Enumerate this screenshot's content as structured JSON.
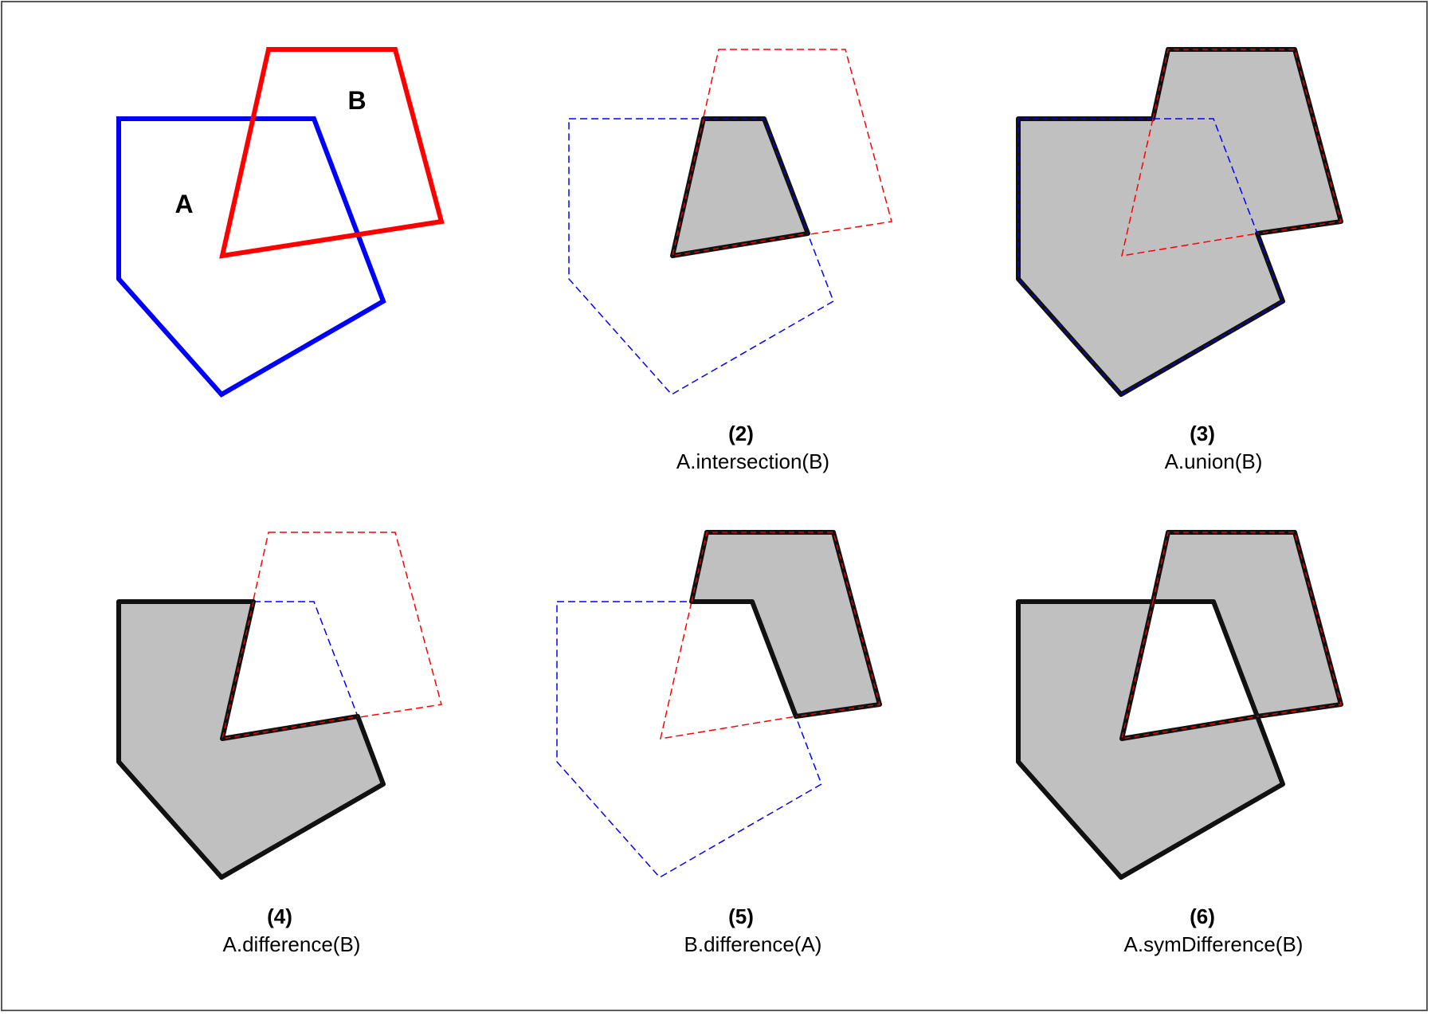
{
  "colors": {
    "polygon_a": "#0000ff",
    "polygon_b": "#ff0000",
    "result_fill": "#c0c0c0",
    "result_stroke": "#111111",
    "background": "#ffffff"
  },
  "labels": {
    "a": "A",
    "b": "B"
  },
  "panels": [
    {
      "number": "",
      "operation": ""
    },
    {
      "number": "(2)",
      "operation": "A.intersection(B)"
    },
    {
      "number": "(3)",
      "operation": "A.union(B)"
    },
    {
      "number": "(4)",
      "operation": "A.difference(B)"
    },
    {
      "number": "(5)",
      "operation": "B.difference(A)"
    },
    {
      "number": "(6)",
      "operation": "A.symDifference(B)"
    }
  ]
}
